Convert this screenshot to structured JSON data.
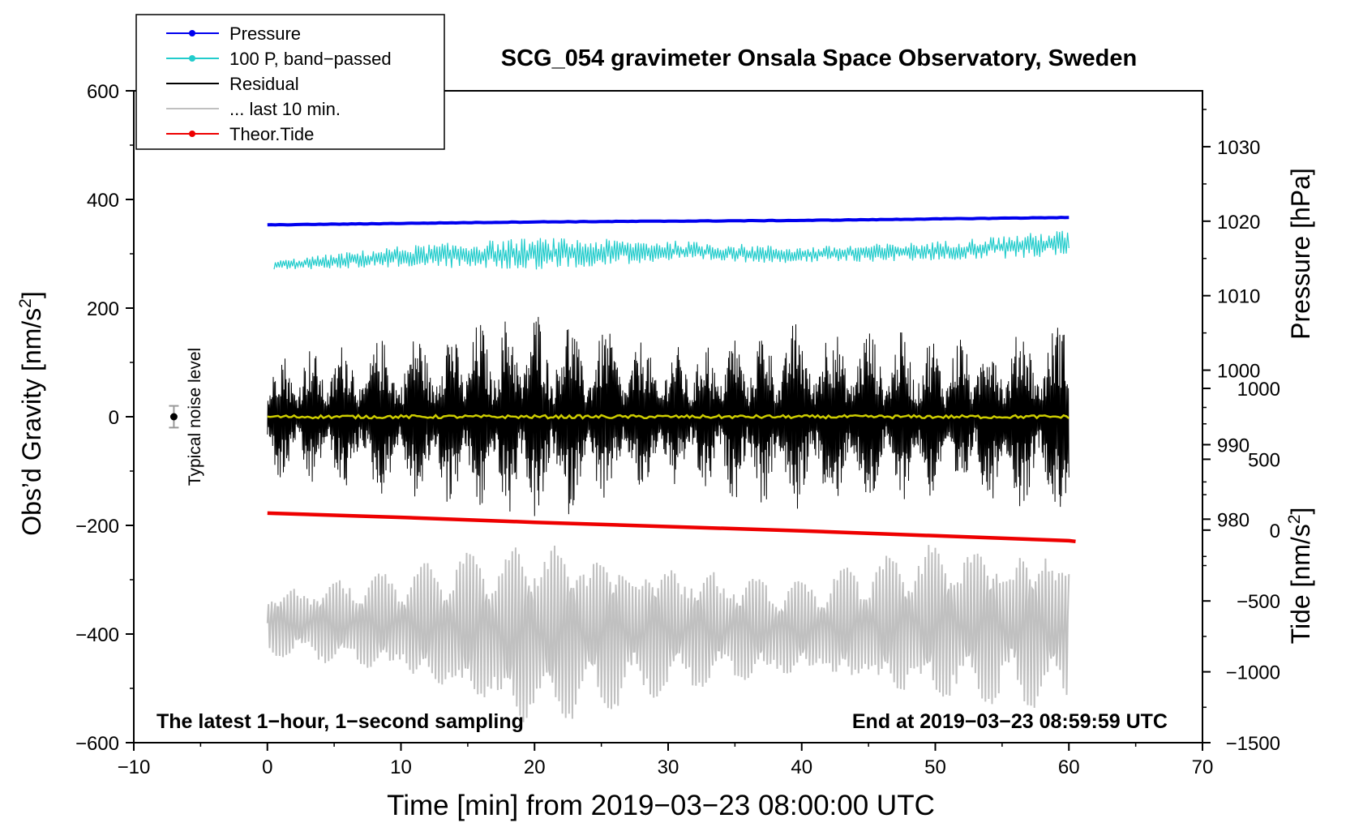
{
  "chart_data": {
    "type": "line",
    "title": "SCG_054 gravimeter Onsala Space Observatory, Sweden",
    "xlabel": "Time [min] from 2019−03−23 08:00:00 UTC",
    "ylabel_left": "Obs’d Gravity [nm/s",
    "ylabel_left_sup": "2",
    "ylabel_left_end": "]",
    "ylabel_right_pressure": "Pressure [hPa]",
    "ylabel_right_tide": "Tide [nm/s",
    "ylabel_right_tide_sup": "2",
    "ylabel_right_tide_end": "]",
    "note_left": "The latest 1−hour, 1−second sampling",
    "note_right": "End at 2019−03−23 08:59:59 UTC",
    "noise_label": "Typical noise level",
    "xlim": [
      -10,
      70
    ],
    "ylim": [
      -600,
      600
    ],
    "xticks": [
      -10,
      0,
      10,
      20,
      30,
      40,
      50,
      60,
      70
    ],
    "xtick_labels": [
      "−10",
      "0",
      "10",
      "20",
      "30",
      "40",
      "50",
      "60",
      "70"
    ],
    "yticks": [
      600,
      400,
      200,
      0,
      -200,
      -400,
      -600
    ],
    "ytick_labels": [
      "600",
      "400",
      "200",
      "0",
      "−200",
      "−400",
      "−600"
    ],
    "pressure_axis": {
      "ticks": [
        1030,
        1020,
        1010,
        1000,
        990,
        980
      ],
      "ylim_at_plot": [
        950,
        1037.5
      ]
    },
    "tide_axis": {
      "ticks": [
        1000,
        500,
        0,
        -500,
        -1000,
        -1500
      ],
      "tick_labels": [
        "1000",
        "500",
        "0",
        "−500",
        "−1000",
        "−1500"
      ],
      "ylim_at_plot": [
        -1500,
        3100
      ]
    },
    "legend": [
      {
        "label": "Pressure",
        "color": "#0000ee",
        "marker": true
      },
      {
        "label": "100 P, band−passed",
        "color": "#22cccc",
        "marker": true
      },
      {
        "label": "Residual",
        "color": "#000000",
        "marker": false
      },
      {
        "label": "... last 10 min.",
        "color": "#c0c0c0",
        "marker": false
      },
      {
        "label": "Theor.Tide",
        "color": "#ee0000",
        "marker": true
      }
    ],
    "series": [
      {
        "name": "Pressure",
        "axis": "pressure",
        "x": [
          0,
          10,
          20,
          30,
          40,
          50,
          60
        ],
        "values": [
          1019.5,
          1019.7,
          1019.9,
          1020.0,
          1020.1,
          1020.3,
          1020.5
        ]
      },
      {
        "name": "100 P, band−passed",
        "axis": "gravity",
        "x": [
          0,
          10,
          20,
          30,
          40,
          50,
          60
        ],
        "values": [
          278,
          295,
          300,
          305,
          298,
          305,
          320
        ],
        "amplitude": [
          8,
          20,
          30,
          20,
          15,
          18,
          25
        ]
      },
      {
        "name": "Residual",
        "axis": "gravity",
        "x": [
          0,
          10,
          20,
          30,
          40,
          50,
          60
        ],
        "values": [
          0,
          0,
          0,
          0,
          0,
          0,
          0
        ],
        "amplitude": [
          120,
          150,
          200,
          130,
          180,
          150,
          180
        ]
      },
      {
        "name": "Residual (smoothed)",
        "axis": "gravity",
        "x": [
          0,
          30,
          60
        ],
        "values": [
          0,
          0,
          0
        ]
      },
      {
        "name": "... last 10 min.",
        "axis": "gravity",
        "x": [
          0,
          10,
          20,
          30,
          40,
          50,
          60
        ],
        "values": [
          -380,
          -380,
          -400,
          -390,
          -390,
          -380,
          -390
        ],
        "amplitude": [
          60,
          100,
          180,
          120,
          90,
          150,
          150
        ]
      },
      {
        "name": "Theor.Tide",
        "axis": "tide",
        "x": [
          0,
          10,
          20,
          30,
          40,
          50,
          60,
          60.5
        ],
        "values": [
          120,
          90,
          55,
          25,
          -5,
          -40,
          -75,
          -80
        ]
      }
    ],
    "noise_marker": {
      "x": -7,
      "y": 0,
      "error": 20
    }
  },
  "colors": {
    "pressure": "#0000ee",
    "bandpassed": "#22cccc",
    "residual": "#000000",
    "residual_smooth": "#cccc00",
    "last10": "#c0c0c0",
    "tide": "#ee0000"
  }
}
